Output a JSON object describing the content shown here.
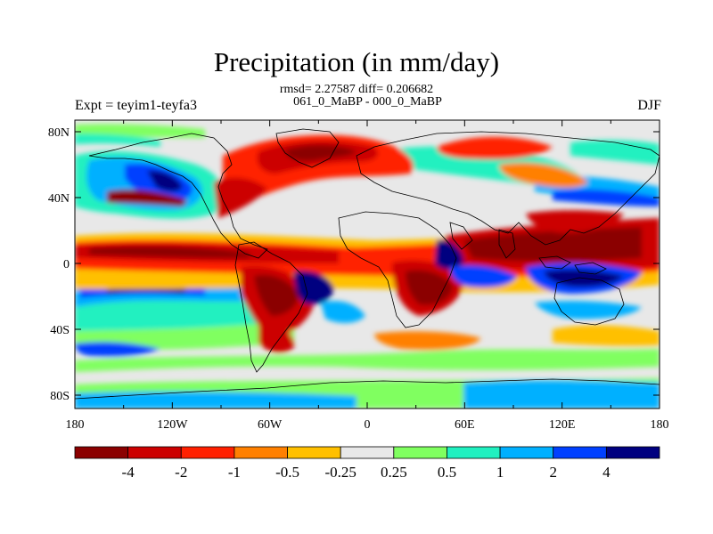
{
  "title": "Precipitation (in mm/day)",
  "stats_line": "rmsd= 2.27587 diff= 0.206682",
  "subtitle": "061_0_MaBP - 000_0_MaBP",
  "left_label": "Expt = teyim1-teyfa3",
  "right_label": "DJF",
  "lat_ticks": [
    "80N",
    "40N",
    "0",
    "40S",
    "80S"
  ],
  "lon_ticks": [
    "180",
    "120W",
    "60W",
    "0",
    "60E",
    "120E",
    "180"
  ],
  "colorbar": {
    "labels": [
      "-4",
      "-2",
      "-1",
      "-0.5",
      "-0.25",
      "0.25",
      "0.5",
      "1",
      "2",
      "4"
    ],
    "colors": [
      "#8b0000",
      "#cc0000",
      "#ff2000",
      "#ff8000",
      "#ffc000",
      "#e8e8e8",
      "#80ff60",
      "#20f0c0",
      "#00b0ff",
      "#0040ff",
      "#000080"
    ]
  }
}
